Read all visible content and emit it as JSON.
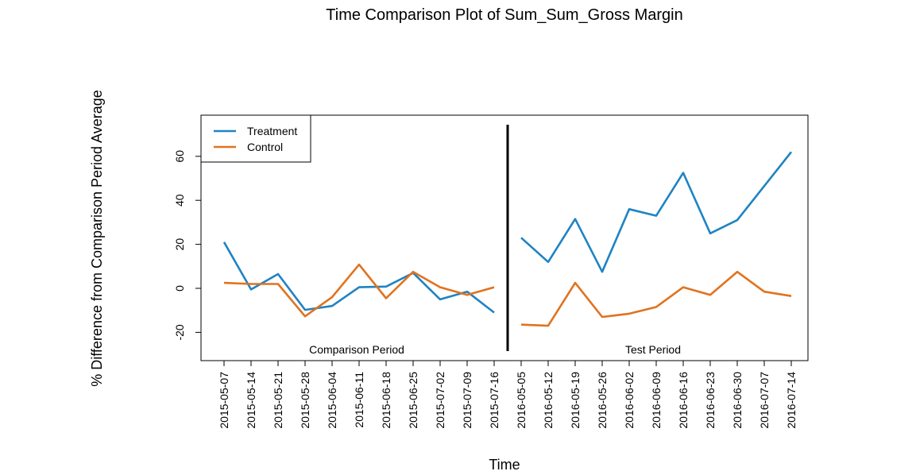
{
  "chart_data": {
    "type": "line",
    "title": "Time Comparison Plot of Sum_Sum_Gross Margin",
    "xlabel": "Time",
    "ylabel": "% Difference from Comparison Period Average",
    "ylim": [
      -33,
      78
    ],
    "yticks": [
      -20,
      0,
      20,
      40,
      60
    ],
    "grid": false,
    "legend_position": "top-left",
    "categories": [
      "2015-05-07",
      "2015-05-14",
      "2015-05-21",
      "2015-05-28",
      "2015-06-04",
      "2015-06-11",
      "2015-06-18",
      "2015-06-25",
      "2015-07-02",
      "2015-07-09",
      "2015-07-16",
      "2016-05-05",
      "2016-05-12",
      "2016-05-19",
      "2016-05-26",
      "2016-06-02",
      "2016-06-09",
      "2016-06-16",
      "2016-06-23",
      "2016-06-30",
      "2016-07-07",
      "2016-07-14"
    ],
    "periods": [
      {
        "label": "Comparison Period",
        "start_index": 0,
        "end_index": 10
      },
      {
        "label": "Test Period",
        "start_index": 11,
        "end_index": 21
      }
    ],
    "series": [
      {
        "name": "Treatment",
        "color": "#1f83c3",
        "values": [
          21,
          -0.5,
          6.5,
          -9.8,
          -8,
          0.5,
          0.8,
          7,
          -5,
          -1.5,
          -11,
          23,
          12,
          31.5,
          7.5,
          36,
          33,
          52.5,
          25,
          31,
          46.5,
          62
        ]
      },
      {
        "name": "Control",
        "color": "#e0731f",
        "values": [
          2.5,
          2,
          2,
          -12.7,
          -4,
          10.8,
          -4.5,
          7.5,
          0.5,
          -3,
          0.5,
          -16.5,
          -17,
          2.5,
          -13,
          -11.5,
          -8.5,
          0.5,
          -3,
          7.5,
          -1.5,
          -3.5
        ]
      }
    ]
  }
}
